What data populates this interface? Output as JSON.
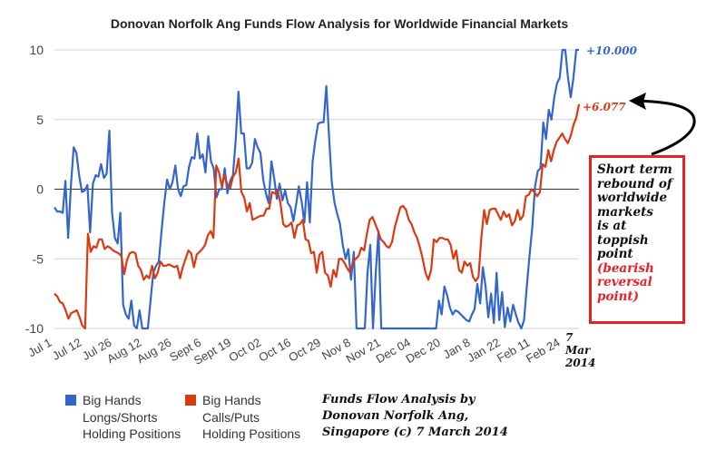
{
  "chart_data": {
    "type": "line",
    "title": "Donovan Norfolk Ang Funds Flow Analysis for Worldwide Financial Markets",
    "ylim": [
      -10,
      10
    ],
    "yticks": [
      "10",
      "5",
      "0",
      "-5",
      "-10"
    ],
    "xticks": [
      "Jul 1",
      "Jul 12",
      "Jul 26",
      "Aug 12",
      "Aug 26",
      "Sept 6",
      "Sept 19",
      "Oct 02",
      "Oct 16",
      "Oct 29",
      "Nov 8",
      "Nov 21",
      "Dec 04",
      "Dec 20",
      "Jan 8",
      "Jan 22",
      "Feb 11",
      "Feb 24"
    ],
    "grid": true,
    "legend_position": "bottom-left",
    "colors": {
      "longs_shorts": "#3366cc",
      "calls_puts": "#dc3912"
    },
    "series": [
      {
        "name": "Big Hands Longs/Shorts Holding Positions",
        "color": "#3366cc",
        "end_label": "+10.000",
        "values": [
          -1.3,
          -1.6,
          -1.6,
          -1.7,
          0.6,
          -3.5,
          0.3,
          3.0,
          2.6,
          1.0,
          -0.2,
          -0.1,
          0.3,
          -3.1,
          0.4,
          1.0,
          0.9,
          1.8,
          0.8,
          1.1,
          4.2,
          -1.7,
          -3.5,
          -3.9,
          -1.7,
          -8.3,
          -9.0,
          -9.3,
          -8.0,
          -9.8,
          -10.0,
          -8.7,
          -10.0,
          -10.0,
          -10.0,
          -8.0,
          -6.0,
          -5.5,
          -5.2,
          -3.0,
          -1.0,
          0.7,
          0.0,
          0.5,
          1.7,
          0.0,
          -0.5,
          0.2,
          0.3,
          1.6,
          2.3,
          2.2,
          4.0,
          2.2,
          2.5,
          1.2,
          3.8,
          2.0,
          1.5,
          -0.6,
          0.0,
          0.0,
          1.5,
          -0.3,
          0.6,
          1.0,
          3.5,
          7.0,
          4.0,
          4.0,
          1.5,
          1.5,
          1.9,
          3.6,
          3.0,
          2.6,
          0.7,
          -0.3,
          -1.0,
          2.0,
          0.8,
          -0.7,
          0.4,
          -0.8,
          -0.1,
          -1.0,
          -1.3,
          -2.3,
          -1.1,
          0.2,
          -0.9,
          -2.4,
          0.5,
          -2.4,
          2.0,
          3.5,
          4.7,
          4.8,
          4.8,
          7.4,
          3.8,
          0.5,
          -1.0,
          -1.8,
          -2.5,
          -4.0,
          -5.0,
          -4.3,
          -6.5,
          -4.5,
          -10.0,
          -10.0,
          -10.0,
          -10.0,
          -6.0,
          -4.0,
          -10.0,
          -6.0,
          -3.0,
          -10.0,
          -10.0,
          -10.0,
          -10.0,
          -10.0,
          -10.0,
          -10.0,
          -10.0,
          -10.0,
          -10.0,
          -10.0,
          -10.0,
          -10.0,
          -10.0,
          -10.0,
          -10.0,
          -10.0,
          -10.0,
          -10.0,
          -10.0,
          -10.0,
          -8.0,
          -9.0,
          -7.0,
          -7.6,
          -8.5,
          -9.0,
          -8.7,
          -8.8,
          -9.0,
          -9.2,
          -9.4,
          -9.5,
          -9.0,
          -8.6,
          -6.8,
          -8.2,
          -5.6,
          -7.0,
          -9.2,
          -7.5,
          -9.6,
          -6.0,
          -9.4,
          -7.4,
          -9.9,
          -8.5,
          -9.5,
          -8.3,
          -9.0,
          -9.6,
          -10.0,
          -9.4,
          -7.0,
          -4.8,
          -2.7,
          0.2,
          1.3,
          1.5,
          4.8,
          3.6,
          5.7,
          5.0,
          6.6,
          7.6,
          8.0,
          10.0,
          10.0,
          8.0,
          6.6,
          8.0,
          10.0,
          10.0
        ]
      },
      {
        "name": "Big Hands Calls/Puts Holding Positions",
        "color": "#dc3912",
        "end_label": "+6.077",
        "values": [
          -7.5,
          -7.7,
          -8.1,
          -8.2,
          -8.7,
          -9.3,
          -8.9,
          -8.8,
          -8.7,
          -9.2,
          -9.8,
          -10.0,
          -3.2,
          -4.5,
          -4.1,
          -4.2,
          -3.6,
          -3.6,
          -4.3,
          -4.1,
          -4.2,
          -4.4,
          -4.5,
          -4.6,
          -4.8,
          -6.1,
          -5.1,
          -4.6,
          -4.5,
          -4.6,
          -5.5,
          -5.8,
          -6.5,
          -6.2,
          -6.4,
          -5.5,
          -6.4,
          -6.0,
          -5.2,
          -5.5,
          -5.5,
          -5.4,
          -5.5,
          -5.6,
          -5.5,
          -6.4,
          -5.6,
          -5.0,
          -4.4,
          -4.6,
          -5.6,
          -4.7,
          -4.5,
          -4.3,
          -4.0,
          -3.3,
          -3.0,
          -3.5,
          1.7,
          1.2,
          0.2,
          1.0,
          0.3,
          0.1,
          0.9,
          1.2,
          2.2,
          -0.2,
          -0.6,
          -1.6,
          -1.0,
          -2.2,
          -2.1,
          -2.0,
          -1.9,
          -1.9,
          -1.4,
          -1.4,
          -0.2,
          -0.3,
          -0.1,
          -1.0,
          -2.5,
          -2.7,
          -2.6,
          -2.4,
          -3.5,
          -2.6,
          -2.5,
          -2.2,
          -3.6,
          -3.7,
          -4.6,
          -4.5,
          -6.0,
          -4.7,
          -4.5,
          -6.0,
          -6.2,
          -7.0,
          -5.8,
          -6.3,
          -5.0,
          -5.0,
          -5.3,
          -5.7,
          -6.0,
          -5.2,
          -5.0,
          -4.8,
          -4.2,
          -4.4,
          -3.2,
          -2.2,
          -2.0,
          -2.5,
          -3.0,
          -3.6,
          -3.8,
          -4.1,
          -4.2,
          -3.8,
          -2.7,
          -2.0,
          -1.3,
          -1.2,
          -1.5,
          -2.2,
          -2.5,
          -3.1,
          -3.5,
          -4.2,
          -5.0,
          -6.0,
          -6.5,
          -5.8,
          -3.6,
          -3.8,
          -3.5,
          -3.5,
          -3.6,
          -3.6,
          -4.0,
          -5.0,
          -4.4,
          -5.8,
          -6.0,
          -5.2,
          -5.5,
          -5.3,
          -6.3,
          -6.6,
          -6.3,
          -3.5,
          -1.5,
          -2.5,
          -1.5,
          -1.4,
          -1.4,
          -1.8,
          -2.2,
          -1.6,
          -2.0,
          -1.8,
          -2.6,
          -2.3,
          -1.5,
          -2.2,
          -1.9,
          -0.5,
          -0.4,
          0.0,
          -0.2,
          -0.5,
          -0.2,
          1.8,
          1.6,
          2.8,
          2.0,
          2.8,
          3.4,
          3.7,
          4.0,
          3.6,
          3.3,
          3.8,
          4.6,
          5.1,
          6.1
        ]
      }
    ]
  },
  "annotations": {
    "date_label": [
      "7",
      "Mar",
      "2014"
    ],
    "callout_black": [
      "Short term",
      "rebound of",
      "worldwide",
      "markets",
      "is at",
      "toppish",
      "point"
    ],
    "callout_red": [
      "(bearish",
      "reversal",
      "point)"
    ]
  },
  "legend": [
    {
      "lines": [
        "Big Hands",
        "Longs/Shorts",
        "Holding Positions"
      ],
      "color": "#3366cc"
    },
    {
      "lines": [
        "Big Hands",
        "Calls/Puts",
        "Holding Positions"
      ],
      "color": "#dc3912"
    }
  ],
  "credit": [
    "Funds Flow Analysis by",
    "Donovan Norfolk Ang,",
    "Singapore (c)  7 March 2014"
  ]
}
